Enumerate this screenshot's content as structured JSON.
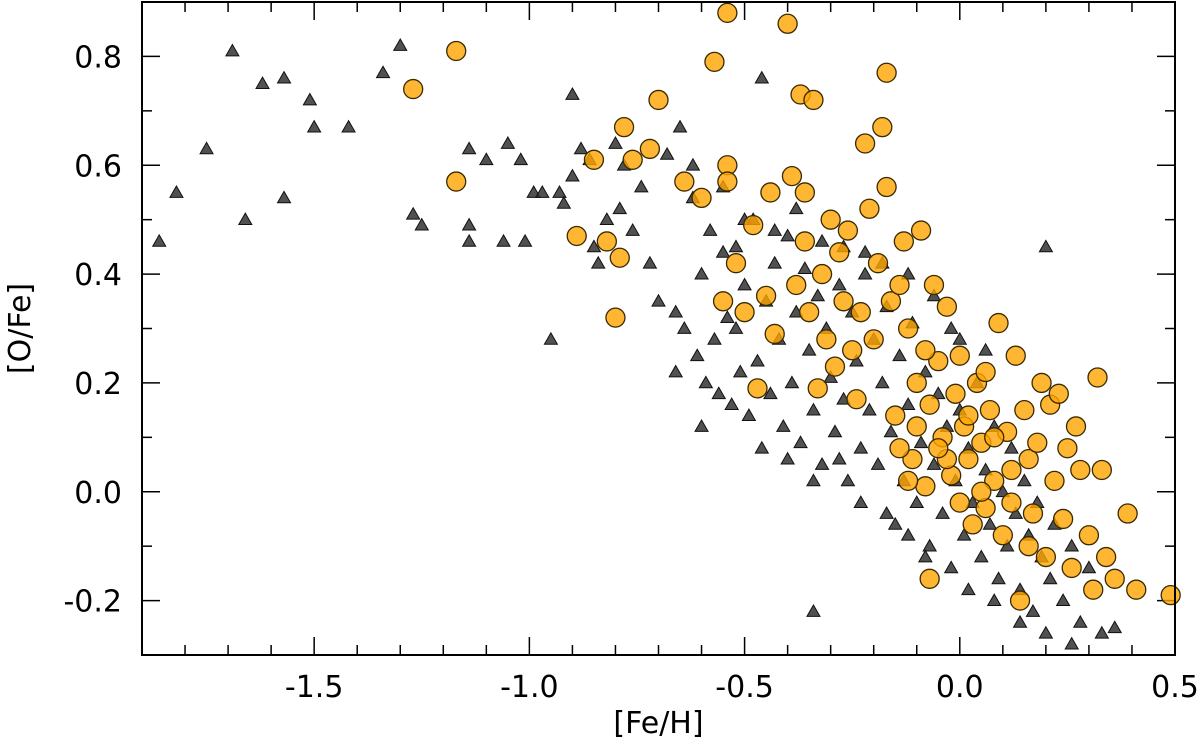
{
  "chart_data": {
    "type": "scatter",
    "title": "",
    "xlabel": "[Fe/H]",
    "ylabel": "[O/Fe]",
    "xlim": [
      -1.9,
      0.5
    ],
    "ylim": [
      -0.3,
      0.9
    ],
    "grid": false,
    "legend": "none",
    "x_ticks": [
      {
        "value": -1.5,
        "label": "-1.5"
      },
      {
        "value": -1.0,
        "label": "-1.0"
      },
      {
        "value": -0.5,
        "label": "-0.5"
      },
      {
        "value": 0.0,
        "label": "0.0"
      },
      {
        "value": 0.5,
        "label": "0.5"
      }
    ],
    "y_ticks": [
      {
        "value": -0.2,
        "label": "-0.2"
      },
      {
        "value": 0.0,
        "label": "0.0"
      },
      {
        "value": 0.2,
        "label": "0.2"
      },
      {
        "value": 0.4,
        "label": "0.4"
      },
      {
        "value": 0.6,
        "label": "0.6"
      },
      {
        "value": 0.8,
        "label": "0.8"
      }
    ],
    "colors": {
      "circle_fill": "#ffa500",
      "circle_stroke": "#3a2a00",
      "triangle_fill": "#333333",
      "triangle_stroke": "#111111",
      "axes": "#000000"
    },
    "series": [
      {
        "marker": "triangle",
        "points": [
          [
            -1.86,
            0.46
          ],
          [
            -1.82,
            0.55
          ],
          [
            -1.75,
            0.63
          ],
          [
            -1.69,
            0.81
          ],
          [
            -1.66,
            0.5
          ],
          [
            -1.62,
            0.75
          ],
          [
            -1.57,
            0.76
          ],
          [
            -1.57,
            0.54
          ],
          [
            -1.51,
            0.72
          ],
          [
            -1.5,
            0.67
          ],
          [
            -1.42,
            0.67
          ],
          [
            -1.34,
            0.77
          ],
          [
            -1.3,
            0.82
          ],
          [
            -1.27,
            0.51
          ],
          [
            -1.25,
            0.49
          ],
          [
            -1.14,
            0.63
          ],
          [
            -1.14,
            0.49
          ],
          [
            -1.14,
            0.46
          ],
          [
            -1.1,
            0.61
          ],
          [
            -1.06,
            0.46
          ],
          [
            -1.05,
            0.64
          ],
          [
            -1.02,
            0.61
          ],
          [
            -1.01,
            0.46
          ],
          [
            -0.99,
            0.55
          ],
          [
            -0.97,
            0.55
          ],
          [
            -0.95,
            0.28
          ],
          [
            -0.93,
            0.55
          ],
          [
            -0.92,
            0.53
          ],
          [
            -0.9,
            0.73
          ],
          [
            -0.9,
            0.58
          ],
          [
            -0.88,
            0.63
          ],
          [
            -0.86,
            0.61
          ],
          [
            -0.85,
            0.45
          ],
          [
            -0.84,
            0.42
          ],
          [
            -0.82,
            0.5
          ],
          [
            -0.8,
            0.64
          ],
          [
            -0.79,
            0.52
          ],
          [
            -0.78,
            0.6
          ],
          [
            -0.76,
            0.48
          ],
          [
            -0.74,
            0.56
          ],
          [
            -0.72,
            0.42
          ],
          [
            -0.7,
            0.35
          ],
          [
            -0.68,
            0.62
          ],
          [
            -0.66,
            0.33
          ],
          [
            -0.65,
            0.67
          ],
          [
            -0.64,
            0.3
          ],
          [
            -0.62,
            0.54
          ],
          [
            -0.61,
            0.25
          ],
          [
            -0.6,
            0.4
          ],
          [
            -0.59,
            0.2
          ],
          [
            -0.58,
            0.48
          ],
          [
            -0.57,
            0.28
          ],
          [
            -0.56,
            0.18
          ],
          [
            -0.55,
            0.44
          ],
          [
            -0.54,
            0.32
          ],
          [
            -0.53,
            0.16
          ],
          [
            -0.52,
            0.45
          ],
          [
            -0.51,
            0.22
          ],
          [
            -0.5,
            0.38
          ],
          [
            -0.49,
            0.14
          ],
          [
            -0.48,
            0.5
          ],
          [
            -0.47,
            0.24
          ],
          [
            -0.46,
            0.76
          ],
          [
            -0.45,
            0.35
          ],
          [
            -0.44,
            0.18
          ],
          [
            -0.43,
            0.42
          ],
          [
            -0.42,
            0.28
          ],
          [
            -0.41,
            0.12
          ],
          [
            -0.4,
            0.47
          ],
          [
            -0.39,
            0.2
          ],
          [
            -0.38,
            0.33
          ],
          [
            -0.37,
            0.09
          ],
          [
            -0.36,
            0.41
          ],
          [
            -0.35,
            0.26
          ],
          [
            -0.34,
            0.15
          ],
          [
            -0.34,
            -0.22
          ],
          [
            -0.33,
            0.36
          ],
          [
            -0.32,
            0.05
          ],
          [
            -0.31,
            0.3
          ],
          [
            -0.3,
            0.21
          ],
          [
            -0.29,
            0.11
          ],
          [
            -0.28,
            0.38
          ],
          [
            -0.27,
            0.17
          ],
          [
            -0.26,
            0.02
          ],
          [
            -0.25,
            0.33
          ],
          [
            -0.24,
            0.24
          ],
          [
            -0.23,
            0.08
          ],
          [
            -0.22,
            0.4
          ],
          [
            -0.21,
            0.15
          ],
          [
            -0.2,
            0.28
          ],
          [
            -0.19,
            0.05
          ],
          [
            -0.18,
            0.2
          ],
          [
            -0.17,
            0.34
          ],
          [
            -0.16,
            0.11
          ],
          [
            -0.15,
            -0.06
          ],
          [
            -0.14,
            0.25
          ],
          [
            -0.13,
            0.02
          ],
          [
            -0.12,
            0.16
          ],
          [
            -0.11,
            0.31
          ],
          [
            -0.1,
            -0.02
          ],
          [
            -0.09,
            0.09
          ],
          [
            -0.08,
            0.22
          ],
          [
            -0.07,
            -0.1
          ],
          [
            -0.06,
            0.05
          ],
          [
            -0.05,
            0.18
          ],
          [
            -0.04,
            -0.04
          ],
          [
            -0.03,
            0.12
          ],
          [
            -0.02,
            -0.14
          ],
          [
            -0.01,
            0.02
          ],
          [
            0.0,
            0.15
          ],
          [
            0.01,
            -0.08
          ],
          [
            0.02,
            0.08
          ],
          [
            0.03,
            -0.02
          ],
          [
            0.04,
            0.2
          ],
          [
            0.05,
            -0.12
          ],
          [
            0.06,
            0.04
          ],
          [
            0.07,
            -0.06
          ],
          [
            0.08,
            0.12
          ],
          [
            0.09,
            -0.16
          ],
          [
            0.1,
            0.0
          ],
          [
            0.11,
            -0.1
          ],
          [
            0.12,
            0.08
          ],
          [
            0.13,
            -0.04
          ],
          [
            0.14,
            -0.18
          ],
          [
            0.15,
            0.02
          ],
          [
            0.16,
            -0.08
          ],
          [
            0.17,
            -0.22
          ],
          [
            0.18,
            -0.02
          ],
          [
            0.19,
            -0.12
          ],
          [
            0.2,
            0.45
          ],
          [
            0.21,
            -0.16
          ],
          [
            0.22,
            -0.06
          ],
          [
            0.24,
            -0.2
          ],
          [
            0.26,
            -0.1
          ],
          [
            0.28,
            -0.24
          ],
          [
            0.3,
            -0.14
          ],
          [
            0.33,
            -0.26
          ],
          [
            0.36,
            -0.25
          ],
          [
            -0.62,
            0.6
          ],
          [
            -0.55,
            0.56
          ],
          [
            -0.5,
            0.5
          ],
          [
            -0.43,
            0.48
          ],
          [
            -0.38,
            0.52
          ],
          [
            -0.32,
            0.46
          ],
          [
            -0.27,
            0.45
          ],
          [
            -0.22,
            0.44
          ],
          [
            -0.18,
            0.42
          ],
          [
            -0.12,
            0.4
          ],
          [
            -0.06,
            0.36
          ],
          [
            0.0,
            0.28
          ],
          [
            -0.66,
            0.22
          ],
          [
            -0.6,
            0.12
          ],
          [
            -0.52,
            0.3
          ],
          [
            -0.46,
            0.08
          ],
          [
            -0.4,
            0.06
          ],
          [
            -0.34,
            0.02
          ],
          [
            -0.28,
            0.06
          ],
          [
            -0.23,
            -0.02
          ],
          [
            -0.17,
            -0.04
          ],
          [
            -0.12,
            -0.08
          ],
          [
            -0.08,
            -0.12
          ],
          [
            0.02,
            -0.18
          ],
          [
            0.08,
            -0.2
          ],
          [
            0.14,
            -0.24
          ],
          [
            0.2,
            -0.26
          ],
          [
            0.26,
            -0.28
          ],
          [
            -0.02,
            0.3
          ],
          [
            0.06,
            0.26
          ]
        ]
      },
      {
        "marker": "circle",
        "points": [
          [
            -1.27,
            0.74
          ],
          [
            -1.17,
            0.81
          ],
          [
            -1.17,
            0.57
          ],
          [
            -0.89,
            0.47
          ],
          [
            -0.85,
            0.61
          ],
          [
            -0.82,
            0.46
          ],
          [
            -0.8,
            0.32
          ],
          [
            -0.79,
            0.43
          ],
          [
            -0.78,
            0.67
          ],
          [
            -0.76,
            0.61
          ],
          [
            -0.72,
            0.63
          ],
          [
            -0.7,
            0.72
          ],
          [
            -0.64,
            0.57
          ],
          [
            -0.6,
            0.54
          ],
          [
            -0.57,
            0.79
          ],
          [
            -0.55,
            0.35
          ],
          [
            -0.54,
            0.88
          ],
          [
            -0.54,
            0.6
          ],
          [
            -0.54,
            0.57
          ],
          [
            -0.52,
            0.42
          ],
          [
            -0.5,
            0.33
          ],
          [
            -0.48,
            0.49
          ],
          [
            -0.47,
            0.19
          ],
          [
            -0.45,
            0.36
          ],
          [
            -0.44,
            0.55
          ],
          [
            -0.43,
            0.29
          ],
          [
            -0.4,
            0.86
          ],
          [
            -0.39,
            0.58
          ],
          [
            -0.38,
            0.38
          ],
          [
            -0.37,
            0.73
          ],
          [
            -0.36,
            0.55
          ],
          [
            -0.36,
            0.46
          ],
          [
            -0.35,
            0.33
          ],
          [
            -0.34,
            0.72
          ],
          [
            -0.33,
            0.19
          ],
          [
            -0.32,
            0.4
          ],
          [
            -0.31,
            0.28
          ],
          [
            -0.3,
            0.5
          ],
          [
            -0.29,
            0.23
          ],
          [
            -0.28,
            0.44
          ],
          [
            -0.27,
            0.35
          ],
          [
            -0.26,
            0.48
          ],
          [
            -0.25,
            0.26
          ],
          [
            -0.24,
            0.17
          ],
          [
            -0.23,
            0.33
          ],
          [
            -0.22,
            0.64
          ],
          [
            -0.21,
            0.52
          ],
          [
            -0.2,
            0.28
          ],
          [
            -0.19,
            0.42
          ],
          [
            -0.18,
            0.67
          ],
          [
            -0.17,
            0.56
          ],
          [
            -0.17,
            0.77
          ],
          [
            -0.16,
            0.35
          ],
          [
            -0.15,
            0.14
          ],
          [
            -0.14,
            0.38
          ],
          [
            -0.13,
            0.46
          ],
          [
            -0.12,
            0.3
          ],
          [
            -0.11,
            0.06
          ],
          [
            -0.1,
            0.2
          ],
          [
            -0.09,
            0.48
          ],
          [
            -0.08,
            0.01
          ],
          [
            -0.07,
            0.16
          ],
          [
            -0.06,
            0.38
          ],
          [
            -0.05,
            0.24
          ],
          [
            -0.04,
            0.1
          ],
          [
            -0.03,
            0.34
          ],
          [
            -0.02,
            0.03
          ],
          [
            -0.01,
            0.18
          ],
          [
            0.0,
            -0.02
          ],
          [
            0.0,
            0.25
          ],
          [
            0.01,
            0.12
          ],
          [
            0.02,
            0.06
          ],
          [
            0.03,
            -0.06
          ],
          [
            0.04,
            0.2
          ],
          [
            0.05,
            0.09
          ],
          [
            0.06,
            -0.03
          ],
          [
            0.07,
            0.15
          ],
          [
            0.08,
            0.02
          ],
          [
            0.09,
            0.31
          ],
          [
            0.1,
            -0.08
          ],
          [
            0.11,
            0.11
          ],
          [
            0.12,
            0.04
          ],
          [
            0.13,
            0.25
          ],
          [
            0.14,
            -0.2
          ],
          [
            0.15,
            0.15
          ],
          [
            0.16,
            0.06
          ],
          [
            0.17,
            -0.04
          ],
          [
            0.18,
            0.09
          ],
          [
            0.19,
            0.2
          ],
          [
            0.2,
            -0.12
          ],
          [
            0.21,
            0.16
          ],
          [
            0.22,
            0.02
          ],
          [
            0.23,
            0.18
          ],
          [
            0.24,
            -0.05
          ],
          [
            0.25,
            0.08
          ],
          [
            0.26,
            -0.14
          ],
          [
            0.27,
            0.12
          ],
          [
            0.28,
            0.04
          ],
          [
            0.3,
            -0.08
          ],
          [
            0.31,
            -0.18
          ],
          [
            0.32,
            0.21
          ],
          [
            0.33,
            0.04
          ],
          [
            0.34,
            -0.12
          ],
          [
            0.36,
            -0.16
          ],
          [
            0.39,
            -0.04
          ],
          [
            0.41,
            -0.18
          ],
          [
            0.49,
            -0.19
          ],
          [
            -0.07,
            -0.16
          ],
          [
            -0.03,
            0.06
          ],
          [
            0.05,
            0.0
          ],
          [
            -0.1,
            0.12
          ],
          [
            -0.05,
            0.08
          ],
          [
            0.02,
            0.14
          ],
          [
            0.08,
            0.1
          ],
          [
            -0.12,
            0.02
          ],
          [
            -0.08,
            0.26
          ],
          [
            0.06,
            0.22
          ],
          [
            -0.14,
            0.08
          ],
          [
            0.12,
            -0.02
          ],
          [
            0.16,
            -0.1
          ]
        ]
      }
    ]
  }
}
